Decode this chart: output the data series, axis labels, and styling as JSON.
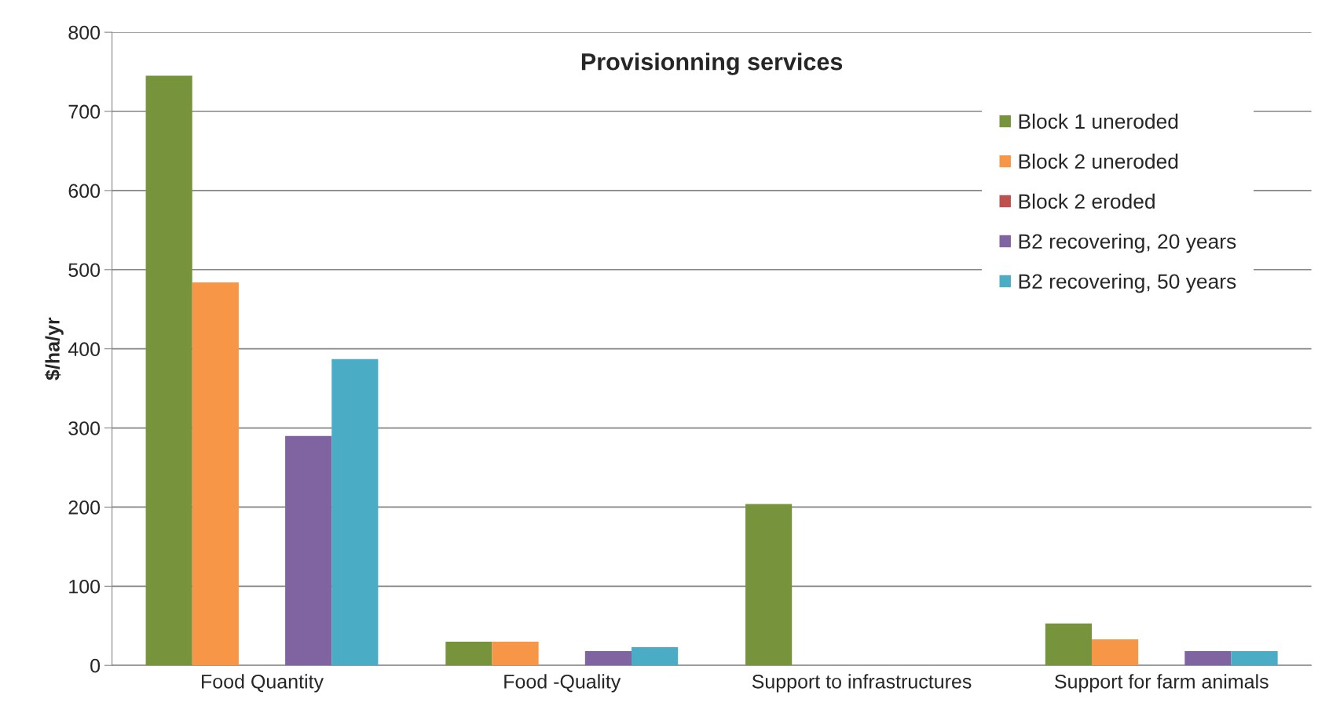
{
  "chart_data": {
    "type": "bar",
    "title": "Provisionning services",
    "ylabel": "$/ha/yr",
    "categories": [
      "Food Quantity",
      "Food -Quality",
      "Support to infrastructures",
      "Support for farm animals"
    ],
    "series": [
      {
        "name": "Block 1 uneroded",
        "color": "#77933c",
        "values": [
          745,
          30,
          204,
          53
        ]
      },
      {
        "name": "Block 2 uneroded",
        "color": "#f79646",
        "values": [
          484,
          30,
          0,
          33
        ]
      },
      {
        "name": "Block 2 eroded",
        "color": "#c0504d",
        "values": [
          0,
          0,
          0,
          0
        ]
      },
      {
        "name": "B2 recovering, 20 years",
        "color": "#8064a2",
        "values": [
          290,
          18,
          0,
          18
        ]
      },
      {
        "name": "B2 recovering, 50 years",
        "color": "#4bacc6",
        "values": [
          387,
          23,
          0,
          18
        ]
      }
    ],
    "ylim": [
      0,
      800
    ],
    "yticks": [
      0,
      100,
      200,
      300,
      400,
      500,
      600,
      700,
      800
    ],
    "grid": "y",
    "legend": "right"
  }
}
